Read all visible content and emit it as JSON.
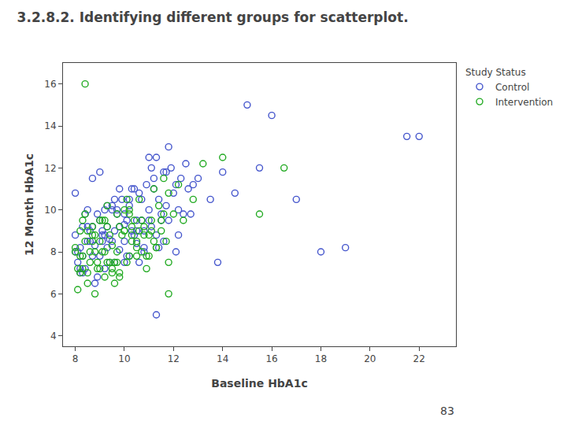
{
  "chart_data": {
    "type": "scatter",
    "title": "3.2.8.2. Identifying different groups for scatterplot.",
    "x_label": "Baseline HbA1c",
    "y_label": "12 Month HbA1c",
    "legend_title": "Study Status",
    "legend": "right",
    "grid": false,
    "xlim": [
      7.5,
      23.5
    ],
    "ylim": [
      3.5,
      17.0
    ],
    "xticks": [
      8,
      10,
      12,
      14,
      16,
      18,
      20,
      22
    ],
    "yticks": [
      4,
      6,
      8,
      10,
      12,
      14,
      16
    ],
    "annotations": [
      {
        "text": "83"
      }
    ],
    "series": [
      {
        "name": "Control",
        "color": "#4455cc",
        "marker": "circle-open",
        "x": [
          8.0,
          8.1,
          8.2,
          8.3,
          8.5,
          8.6,
          8.7,
          8.8,
          8.9,
          9.0,
          9.1,
          9.2,
          9.3,
          9.4,
          9.5,
          9.6,
          9.7,
          9.8,
          9.9,
          10.0,
          10.1,
          10.2,
          10.3,
          10.4,
          10.5,
          10.6,
          10.7,
          10.8,
          10.9,
          11.0,
          11.1,
          11.2,
          11.3,
          11.4,
          11.5,
          11.6,
          11.7,
          11.8,
          11.9,
          12.0,
          12.1,
          12.2,
          12.3,
          12.4,
          12.5,
          12.6,
          13.0,
          13.5,
          14.0,
          14.5,
          15.0,
          15.5,
          16.0,
          17.0,
          18.0,
          19.0,
          21.5,
          8.2,
          8.4,
          8.8,
          9.0,
          9.2,
          9.5,
          9.8,
          10.0,
          10.2,
          10.5,
          10.8,
          11.0,
          11.2,
          11.5,
          11.8,
          12.2,
          12.8,
          8.3,
          8.6,
          9.1,
          9.4,
          9.7,
          10.1,
          10.4,
          10.7,
          11.1,
          11.4,
          11.7,
          12.1,
          12.7,
          8.0,
          8.5,
          9.0,
          9.3,
          9.6,
          10.0,
          10.3,
          10.6,
          11.0,
          11.3,
          8.1,
          8.4,
          8.7,
          9.2,
          9.6,
          10.2,
          10.8,
          11.6,
          8.2,
          8.5,
          8.9,
          9.3,
          9.8,
          10.5,
          11.3,
          8.0,
          8.3,
          8.7,
          9.1,
          9.5,
          10.0,
          13.8,
          22.0
        ],
        "values": [
          8.0,
          7.5,
          8.2,
          7.0,
          8.5,
          9.0,
          7.8,
          8.3,
          6.8,
          9.5,
          8.8,
          7.2,
          9.2,
          8.6,
          10.0,
          7.5,
          9.8,
          8.1,
          10.5,
          9.3,
          7.8,
          10.2,
          9.0,
          11.0,
          8.4,
          10.8,
          9.5,
          8.0,
          11.2,
          10.0,
          9.2,
          11.5,
          8.8,
          10.5,
          9.8,
          11.8,
          10.2,
          9.5,
          12.0,
          10.8,
          11.2,
          10.0,
          11.5,
          9.8,
          12.2,
          11.0,
          11.5,
          10.5,
          11.8,
          10.8,
          15.0,
          12.0,
          14.5,
          10.5,
          8.0,
          8.2,
          13.5,
          7.2,
          9.8,
          6.5,
          11.8,
          10.0,
          8.5,
          9.2,
          7.5,
          10.5,
          9.0,
          8.2,
          12.5,
          11.0,
          9.5,
          13.0,
          8.8,
          11.2,
          7.8,
          8.5,
          9.0,
          7.5,
          10.0,
          9.5,
          8.8,
          10.5,
          12.0,
          8.2,
          11.8,
          8.0,
          9.8,
          10.8,
          9.2,
          7.8,
          10.2,
          9.0,
          8.5,
          11.0,
          7.5,
          9.5,
          12.5,
          8.0,
          7.2,
          9.2,
          8.8,
          10.5,
          7.8,
          9.0,
          8.5,
          7.0,
          10.0,
          9.8,
          8.2,
          11.0,
          9.5,
          5.0,
          8.8,
          9.2,
          11.5,
          8.5,
          10.2,
          9.8,
          7.5,
          13.5
        ]
      },
      {
        "name": "Intervention",
        "color": "#22aa22",
        "marker": "circle-open",
        "x": [
          8.0,
          8.1,
          8.2,
          8.3,
          8.4,
          8.5,
          8.6,
          8.7,
          8.8,
          8.9,
          9.0,
          9.1,
          9.2,
          9.3,
          9.4,
          9.5,
          9.6,
          9.7,
          9.8,
          9.9,
          10.0,
          10.1,
          10.2,
          10.3,
          10.4,
          10.5,
          10.6,
          10.7,
          10.8,
          10.9,
          11.0,
          11.1,
          11.2,
          11.3,
          11.4,
          11.5,
          11.6,
          11.7,
          11.8,
          12.0,
          12.2,
          12.4,
          12.8,
          13.2,
          14.0,
          15.5,
          16.5,
          8.2,
          8.4,
          8.7,
          9.0,
          9.3,
          9.7,
          10.2,
          10.7,
          11.3,
          8.1,
          8.5,
          8.9,
          9.4,
          9.8,
          10.3,
          10.9,
          11.6,
          8.3,
          8.6,
          9.1,
          9.5,
          10.0,
          10.5,
          11.1,
          11.8,
          8.0,
          8.4,
          8.8,
          9.2,
          9.6,
          10.1,
          10.6,
          11.2,
          8.2,
          8.7,
          9.2,
          9.7,
          10.2,
          10.8,
          11.5,
          8.5,
          9.0,
          9.5,
          10.0,
          10.5,
          11.0,
          8.3,
          8.8,
          9.3,
          9.8,
          10.3,
          11.8
        ],
        "values": [
          8.0,
          7.2,
          9.0,
          7.8,
          8.5,
          6.5,
          7.5,
          8.8,
          6.0,
          7.2,
          9.5,
          8.0,
          6.8,
          9.2,
          7.5,
          8.3,
          6.5,
          9.8,
          7.0,
          8.8,
          9.0,
          7.5,
          10.0,
          8.5,
          9.5,
          7.8,
          10.5,
          8.0,
          9.2,
          7.2,
          8.8,
          9.5,
          11.0,
          8.2,
          10.2,
          9.0,
          11.5,
          8.5,
          10.8,
          9.8,
          11.2,
          9.5,
          10.5,
          12.2,
          12.5,
          9.8,
          12.0,
          7.0,
          9.8,
          8.5,
          7.2,
          10.2,
          8.0,
          7.8,
          9.5,
          8.2,
          6.2,
          9.0,
          7.5,
          8.8,
          6.8,
          9.2,
          7.8,
          9.8,
          7.2,
          8.0,
          9.5,
          7.0,
          10.0,
          8.5,
          9.0,
          7.5,
          8.2,
          16.0,
          8.8,
          9.5,
          7.5,
          10.5,
          9.0,
          8.5,
          7.8,
          9.2,
          8.0,
          7.5,
          9.8,
          8.8,
          9.5,
          7.0,
          8.5,
          7.2,
          9.0,
          8.2,
          7.8,
          9.5,
          8.0,
          7.5,
          9.2,
          8.8,
          6.0
        ]
      }
    ]
  }
}
